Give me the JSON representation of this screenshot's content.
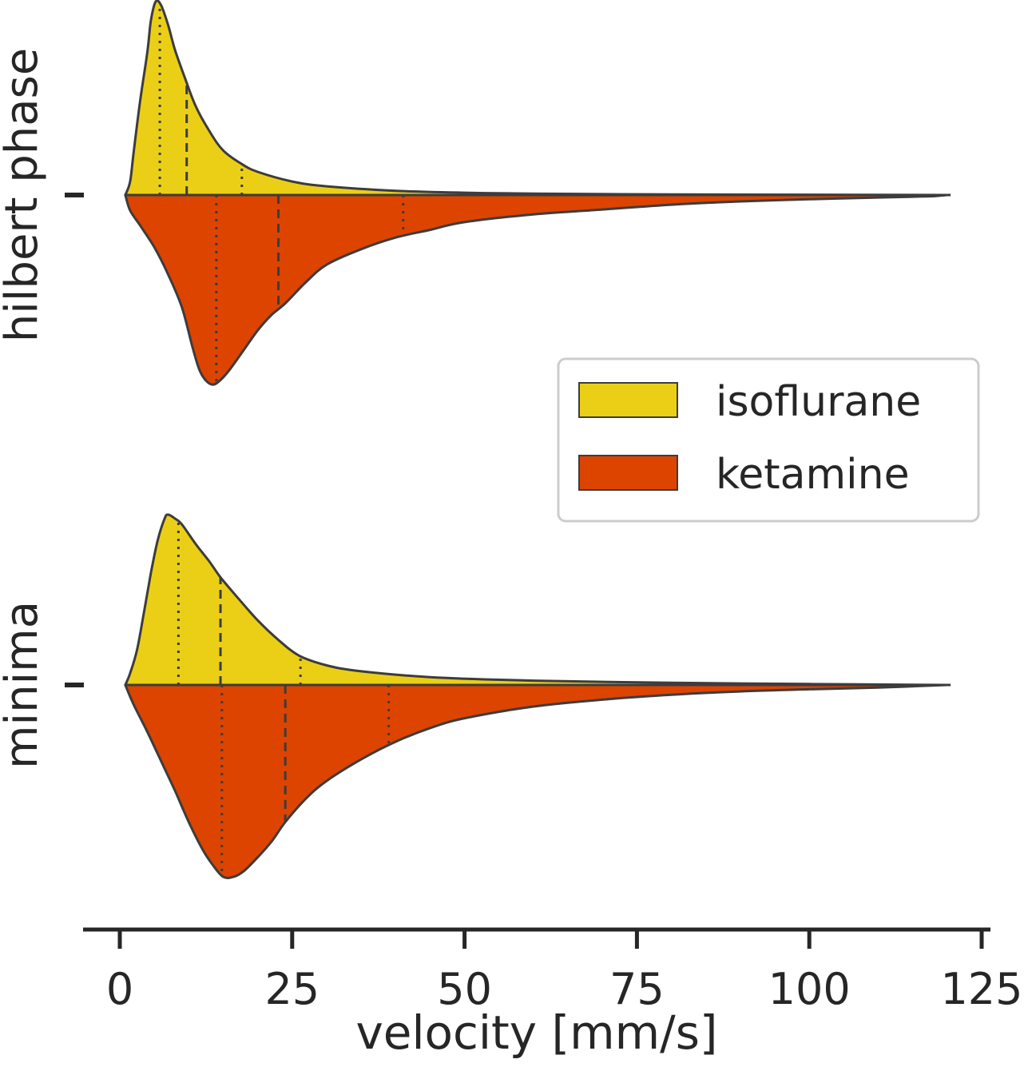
{
  "chart_data": {
    "type": "split-violin",
    "orientation": "horizontal",
    "xlabel": "velocity [mm/s]",
    "xlim": [
      -10,
      126
    ],
    "xticks": [
      0,
      25,
      50,
      75,
      100,
      125
    ],
    "categories": [
      "hilbert phase",
      "minima"
    ],
    "legend": {
      "placement": "right-center",
      "entries": [
        "isoflurane",
        "ketamine"
      ]
    },
    "colors": {
      "isoflurane": "#ebcf16",
      "ketamine": "#dd4400",
      "outline": "#3c3c3c"
    },
    "series": [
      {
        "name": "isoflurane",
        "side": "upper",
        "violins": [
          {
            "category": "hilbert phase",
            "density": [
              [
                0.8,
                0
              ],
              [
                1.5,
                0.07
              ],
              [
                2,
                0.22
              ],
              [
                3,
                0.5
              ],
              [
                4,
                0.74
              ],
              [
                4.5,
                0.9
              ],
              [
                5.2,
                1.0
              ],
              [
                6,
                0.98
              ],
              [
                7,
                0.88
              ],
              [
                8,
                0.75
              ],
              [
                9.5,
                0.6
              ],
              [
                11,
                0.46
              ],
              [
                13,
                0.33
              ],
              [
                15,
                0.23
              ],
              [
                17.7,
                0.16
              ],
              [
                20,
                0.12
              ],
              [
                25,
                0.07
              ],
              [
                30,
                0.045
              ],
              [
                40,
                0.022
              ],
              [
                50,
                0.012
              ],
              [
                60,
                0.007
              ],
              [
                80,
                0.003
              ],
              [
                100,
                0.0015
              ],
              [
                120,
                0.0
              ]
            ],
            "q1": 5.8,
            "median": 9.7,
            "q3": 17.7
          },
          {
            "category": "minima",
            "density": [
              [
                0.8,
                0
              ],
              [
                1.5,
                0.06
              ],
              [
                2.5,
                0.18
              ],
              [
                3.5,
                0.37
              ],
              [
                4.5,
                0.57
              ],
              [
                5.5,
                0.74
              ],
              [
                6.5,
                0.85
              ],
              [
                7,
                0.87
              ],
              [
                8,
                0.85
              ],
              [
                9,
                0.82
              ],
              [
                11,
                0.72
              ],
              [
                13,
                0.63
              ],
              [
                14.6,
                0.55
              ],
              [
                17,
                0.45
              ],
              [
                20,
                0.33
              ],
              [
                23,
                0.23
              ],
              [
                26,
                0.15
              ],
              [
                30,
                0.1
              ],
              [
                35,
                0.07
              ],
              [
                45,
                0.04
              ],
              [
                60,
                0.022
              ],
              [
                80,
                0.011
              ],
              [
                100,
                0.005
              ],
              [
                120,
                0.0
              ]
            ],
            "q1": 8.5,
            "median": 14.6,
            "q3": 26.2
          }
        ]
      },
      {
        "name": "ketamine",
        "side": "lower",
        "violins": [
          {
            "category": "hilbert phase",
            "density": [
              [
                0.8,
                0
              ],
              [
                1.5,
                0.08
              ],
              [
                3,
                0.16
              ],
              [
                5,
                0.27
              ],
              [
                7,
                0.41
              ],
              [
                9,
                0.58
              ],
              [
                10.5,
                0.78
              ],
              [
                11.5,
                0.9
              ],
              [
                12.5,
                0.96
              ],
              [
                13.5,
                0.98
              ],
              [
                14.5,
                0.96
              ],
              [
                16,
                0.9
              ],
              [
                18,
                0.8
              ],
              [
                20,
                0.7
              ],
              [
                22,
                0.62
              ],
              [
                24,
                0.56
              ],
              [
                27,
                0.45
              ],
              [
                30,
                0.36
              ],
              [
                35,
                0.28
              ],
              [
                40,
                0.22
              ],
              [
                45,
                0.18
              ],
              [
                50,
                0.14
              ],
              [
                60,
                0.1
              ],
              [
                70,
                0.075
              ],
              [
                80,
                0.05
              ],
              [
                90,
                0.033
              ],
              [
                100,
                0.022
              ],
              [
                110,
                0.013
              ],
              [
                116,
                0.008
              ],
              [
                118,
                0.006
              ],
              [
                120,
                0.0
              ]
            ],
            "q1": 14.0,
            "median": 23.0,
            "q3": 41.1
          },
          {
            "category": "minima",
            "density": [
              [
                0.8,
                0
              ],
              [
                2,
                0.1
              ],
              [
                4,
                0.24
              ],
              [
                6,
                0.39
              ],
              [
                8,
                0.54
              ],
              [
                10,
                0.7
              ],
              [
                12,
                0.84
              ],
              [
                13.5,
                0.92
              ],
              [
                15,
                0.98
              ],
              [
                16.5,
                0.98
              ],
              [
                18,
                0.95
              ],
              [
                20,
                0.88
              ],
              [
                22,
                0.8
              ],
              [
                24,
                0.7
              ],
              [
                27,
                0.58
              ],
              [
                30,
                0.49
              ],
              [
                35,
                0.38
              ],
              [
                40,
                0.29
              ],
              [
                45,
                0.22
              ],
              [
                50,
                0.17
              ],
              [
                60,
                0.11
              ],
              [
                70,
                0.075
              ],
              [
                80,
                0.05
              ],
              [
                90,
                0.033
              ],
              [
                100,
                0.022
              ],
              [
                110,
                0.013
              ],
              [
                120,
                0.0
              ]
            ],
            "q1": 14.8,
            "median": 24.0,
            "q3": 39.0
          }
        ]
      }
    ]
  }
}
